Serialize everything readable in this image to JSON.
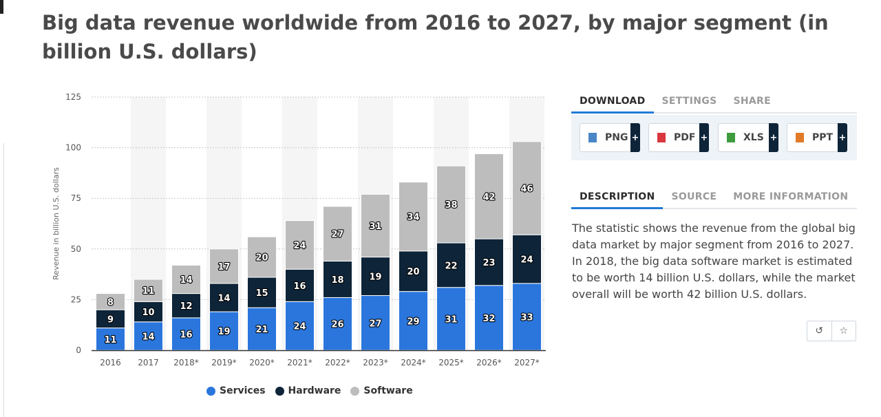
{
  "title": "Big data revenue worldwide from 2016 to 2027, by major segment (in billion U.S. dollars)",
  "colors": {
    "services": "#2a76dd",
    "hardware": "#0e2438",
    "software": "#bdbdbd",
    "accent": "#1f7ad6"
  },
  "chart_data": {
    "type": "bar",
    "stacked": true,
    "categories": [
      "2016",
      "2017",
      "2018*",
      "2019*",
      "2020*",
      "2021*",
      "2022*",
      "2023*",
      "2024*",
      "2025*",
      "2026*",
      "2027*"
    ],
    "series": [
      {
        "name": "Services",
        "values": [
          11,
          14,
          16,
          19,
          21,
          24,
          26,
          27,
          29,
          31,
          32,
          33
        ]
      },
      {
        "name": "Hardware",
        "values": [
          9,
          10,
          12,
          14,
          15,
          16,
          18,
          19,
          20,
          22,
          23,
          24
        ]
      },
      {
        "name": "Software",
        "values": [
          8,
          11,
          14,
          17,
          20,
          24,
          27,
          31,
          34,
          38,
          42,
          46
        ]
      }
    ],
    "ylabel": "Revenue in billion U.S. dollars",
    "ylim": [
      0,
      125
    ],
    "yticks": [
      "0",
      "25",
      "50",
      "75",
      "100",
      "125"
    ],
    "grid": true,
    "legend": "bottom"
  },
  "side_panel": {
    "tabs_top": [
      "DOWNLOAD",
      "SETTINGS",
      "SHARE"
    ],
    "downloads": [
      {
        "label": "PNG",
        "icon": "png-file-icon",
        "color": "#4a86c5"
      },
      {
        "label": "PDF",
        "icon": "pdf-file-icon",
        "color": "#d9363e"
      },
      {
        "label": "XLS",
        "icon": "xls-file-icon",
        "color": "#3e9b3e"
      },
      {
        "label": "PPT",
        "icon": "ppt-file-icon",
        "color": "#e07a28"
      }
    ],
    "plus": "+",
    "tabs_bottom": [
      "DESCRIPTION",
      "SOURCE",
      "MORE INFORMATION"
    ],
    "description": "The statistic shows the revenue from the global big data market by major segment from 2016 to 2027. In 2018, the big data software market is estimated to be worth 14 billion U.S. dollars, while the market overall will be worth 42 billion U.S. dollars.",
    "icon_buttons": [
      {
        "icon": "history-icon",
        "glyph": "↺"
      },
      {
        "icon": "star-icon",
        "glyph": "☆"
      }
    ]
  }
}
